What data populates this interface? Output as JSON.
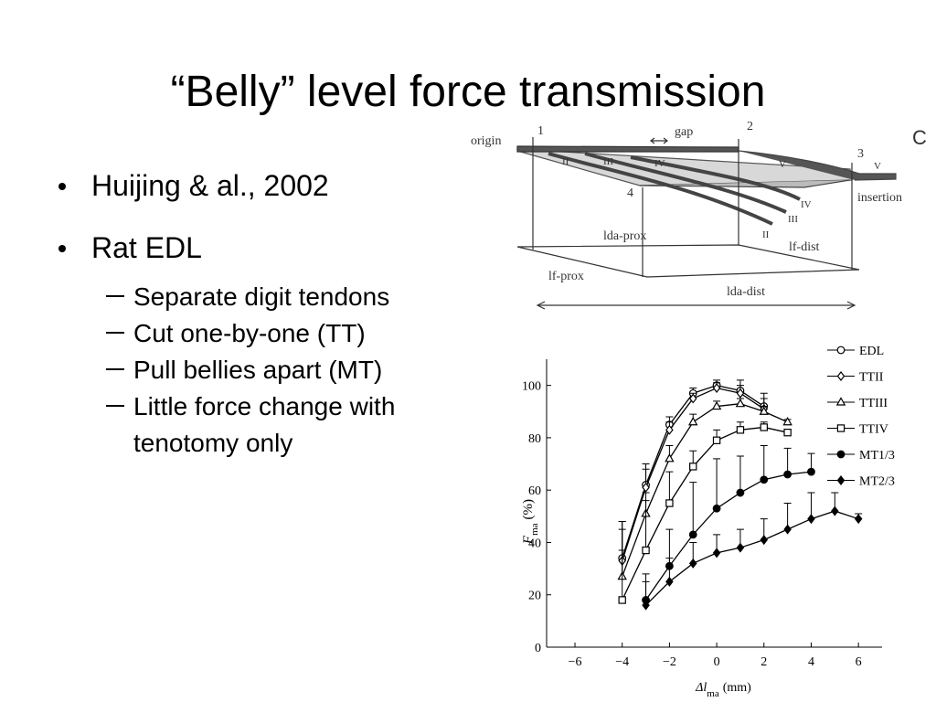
{
  "slide": {
    "title": "“Belly” level force transmission",
    "bullets": [
      {
        "text": "Huijing & al., 2002"
      },
      {
        "text": "Rat EDL",
        "sub": [
          [
            "Separate digit tendons"
          ],
          [
            "Cut one-by-one (TT)"
          ],
          [
            "Pull bellies apart (MT)"
          ],
          [
            "Little force change with",
            "tenotomy only"
          ]
        ]
      }
    ]
  },
  "diagram": {
    "labels": {
      "origin": "origin",
      "n1": "1",
      "gap": "gap",
      "n2": "2",
      "n3": "3",
      "panel": "C",
      "b2": "II",
      "b3": "III",
      "b4": "IV",
      "b5": "V",
      "t5": "V",
      "n4": "4",
      "t4": "IV",
      "t3": "III",
      "t2": "II",
      "insertion": "insertion",
      "lda_prox": "lda-prox",
      "lf_dist": "lf-dist",
      "lf_prox": "lf-prox",
      "lda_dist": "lda-dist"
    }
  },
  "chart_data": {
    "type": "line",
    "ylabel": {
      "main": "F",
      "sub": "ma",
      "unit": "(%)"
    },
    "xlabel": {
      "main": "Δl",
      "sub": "ma",
      "unit": "(mm)"
    },
    "xlim": [
      -7.2,
      7
    ],
    "ylim": [
      0,
      110
    ],
    "xticks": [
      {
        "value": -6,
        "label": "−6"
      },
      {
        "value": -4,
        "label": "−4"
      },
      {
        "value": -2,
        "label": "−2"
      },
      0,
      2,
      4,
      6
    ],
    "yticks": [
      0,
      20,
      40,
      60,
      80,
      100
    ],
    "series": [
      {
        "name": "EDL",
        "marker": "circle",
        "filled": false,
        "color": "#000000",
        "x": [
          -4,
          -3,
          -2,
          -1,
          0,
          1,
          2
        ],
        "values": [
          34,
          62,
          85,
          97,
          100,
          98,
          92
        ],
        "errors": [
          14,
          8,
          3,
          2,
          2,
          4,
          5
        ]
      },
      {
        "name": "TTII",
        "marker": "diamond",
        "filled": false,
        "color": "#000000",
        "x": [
          -4,
          -3,
          -2,
          -1,
          0,
          1,
          2
        ],
        "values": [
          33,
          61,
          83,
          95,
          99,
          97,
          91
        ],
        "errors": [
          12,
          7,
          3,
          2,
          2,
          3,
          4
        ]
      },
      {
        "name": "TTIII",
        "marker": "triangle",
        "filled": false,
        "color": "#000000",
        "x": [
          -4,
          -3,
          -2,
          -1,
          0,
          1,
          2,
          3
        ],
        "values": [
          27,
          51,
          72,
          86,
          92,
          93,
          90,
          86
        ],
        "errors": [
          10,
          8,
          5,
          3,
          2,
          2,
          2,
          1
        ]
      },
      {
        "name": "TTIV",
        "marker": "square",
        "filled": false,
        "color": "#000000",
        "x": [
          -4,
          -3,
          -2,
          -1,
          0,
          1,
          2,
          3
        ],
        "values": [
          18,
          37,
          55,
          69,
          79,
          83,
          84,
          82
        ],
        "errors": [
          30,
          19,
          12,
          6,
          4,
          3,
          2,
          1
        ]
      },
      {
        "name": "MT1/3",
        "marker": "circle",
        "filled": true,
        "color": "#000000",
        "x": [
          -3,
          -2,
          -1,
          0,
          1,
          2,
          3,
          4
        ],
        "values": [
          18,
          31,
          43,
          53,
          59,
          64,
          66,
          67
        ],
        "errors": [
          10,
          14,
          20,
          19,
          14,
          13,
          10,
          7
        ]
      },
      {
        "name": "MT2/3",
        "marker": "diamond",
        "filled": true,
        "color": "#000000",
        "x": [
          -3,
          -2,
          -1,
          0,
          1,
          2,
          3,
          4,
          5,
          6
        ],
        "values": [
          16,
          25,
          32,
          36,
          38,
          41,
          45,
          49,
          52,
          49
        ],
        "errors": [
          9,
          9,
          8,
          7,
          7,
          8,
          10,
          10,
          7,
          2
        ]
      }
    ]
  }
}
